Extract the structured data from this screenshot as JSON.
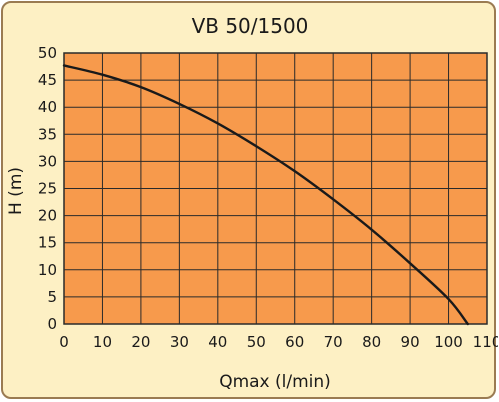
{
  "chart_data": {
    "type": "line",
    "title": "VB 50/1500",
    "xlabel": "Qmax (l/min)",
    "ylabel": "H (m)",
    "xlim": [
      0,
      110
    ],
    "ylim": [
      0,
      50
    ],
    "xticks": [
      0,
      10,
      20,
      30,
      40,
      50,
      60,
      70,
      80,
      90,
      100,
      110
    ],
    "yticks": [
      0,
      5,
      10,
      15,
      20,
      25,
      30,
      35,
      40,
      45,
      50
    ],
    "grid": true,
    "legend": "none",
    "series": [
      {
        "x": [
          0,
          10,
          20,
          30,
          40,
          50,
          60,
          70,
          80,
          90,
          100,
          105
        ],
        "y": [
          47.7,
          46.0,
          43.7,
          40.6,
          37.0,
          32.8,
          28.2,
          23.0,
          17.4,
          11.2,
          4.6,
          0
        ]
      }
    ],
    "colors": {
      "plot_background": "#f79a4c",
      "grid": "#2a2a2a",
      "line": "#1a1a1a",
      "panel_background": "#fdf0c4",
      "border": "#9a7b52"
    }
  }
}
